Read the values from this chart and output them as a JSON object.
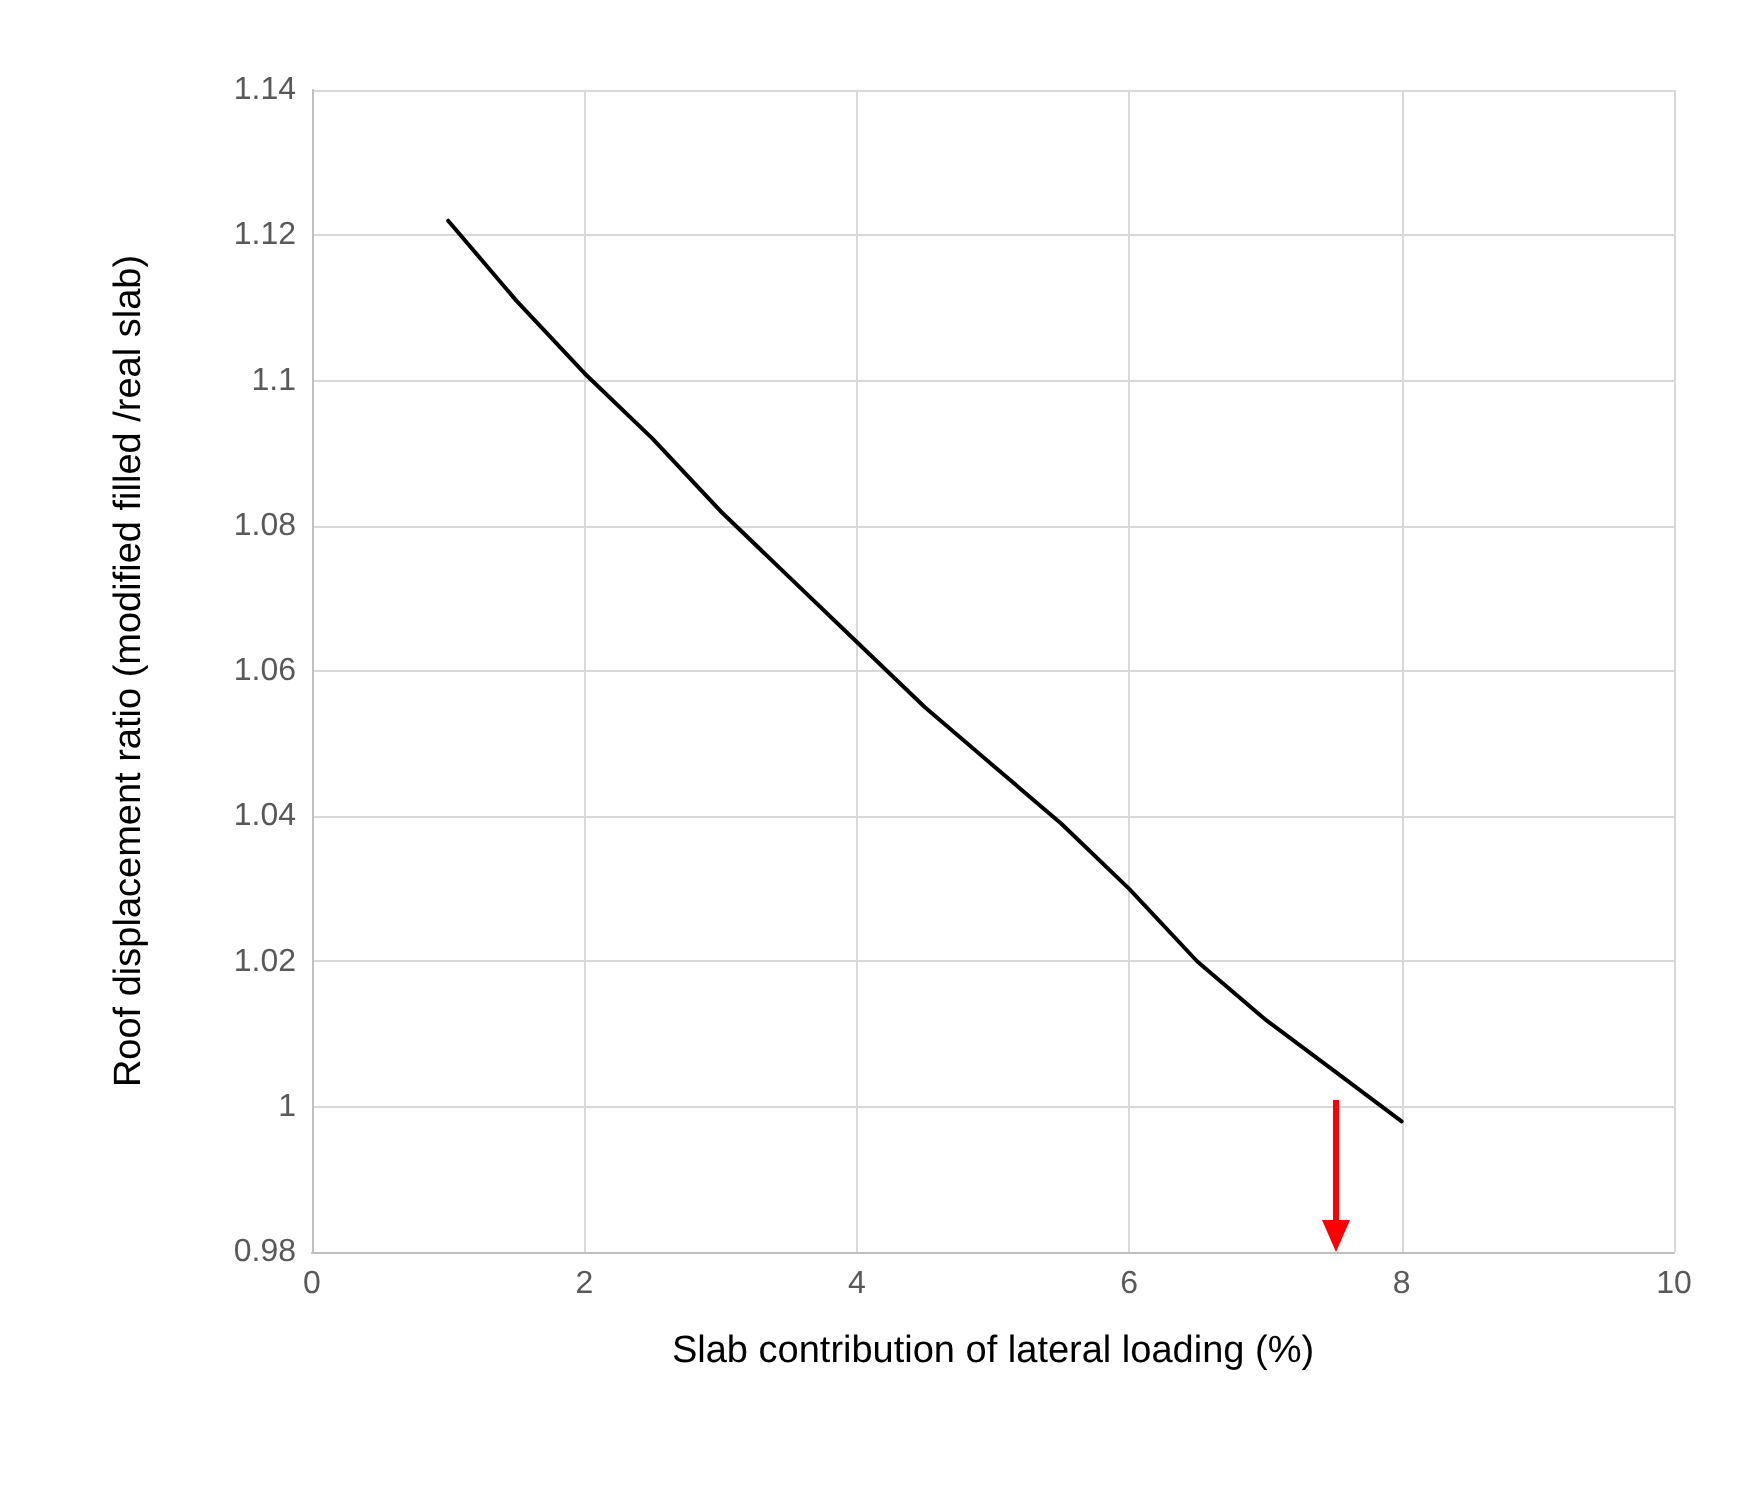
{
  "chart_data": {
    "type": "line",
    "xlabel": "Slab contribution of lateral loading (%)",
    "ylabel": "Roof displacement ratio (modified filled /real slab)",
    "x": [
      1,
      1.5,
      2,
      2.5,
      3,
      3.5,
      4,
      4.5,
      5,
      5.5,
      6,
      6.5,
      7,
      7.5,
      8
    ],
    "series": [
      {
        "color": "#000000",
        "values": [
          1.122,
          1.111,
          1.101,
          1.092,
          1.082,
          1.073,
          1.064,
          1.055,
          1.047,
          1.039,
          1.03,
          1.02,
          1.012,
          1.005,
          0.998
        ]
      }
    ],
    "xlim": [
      0,
      10
    ],
    "xticks": [
      0,
      2,
      4,
      6,
      8,
      10
    ],
    "ylim": [
      0.98,
      1.14
    ],
    "yticks": [
      0.98,
      1,
      1.02,
      1.04,
      1.06,
      1.08,
      1.1,
      1.12,
      1.14
    ],
    "grid": true,
    "marker": "none",
    "line_style": "solid"
  }
}
